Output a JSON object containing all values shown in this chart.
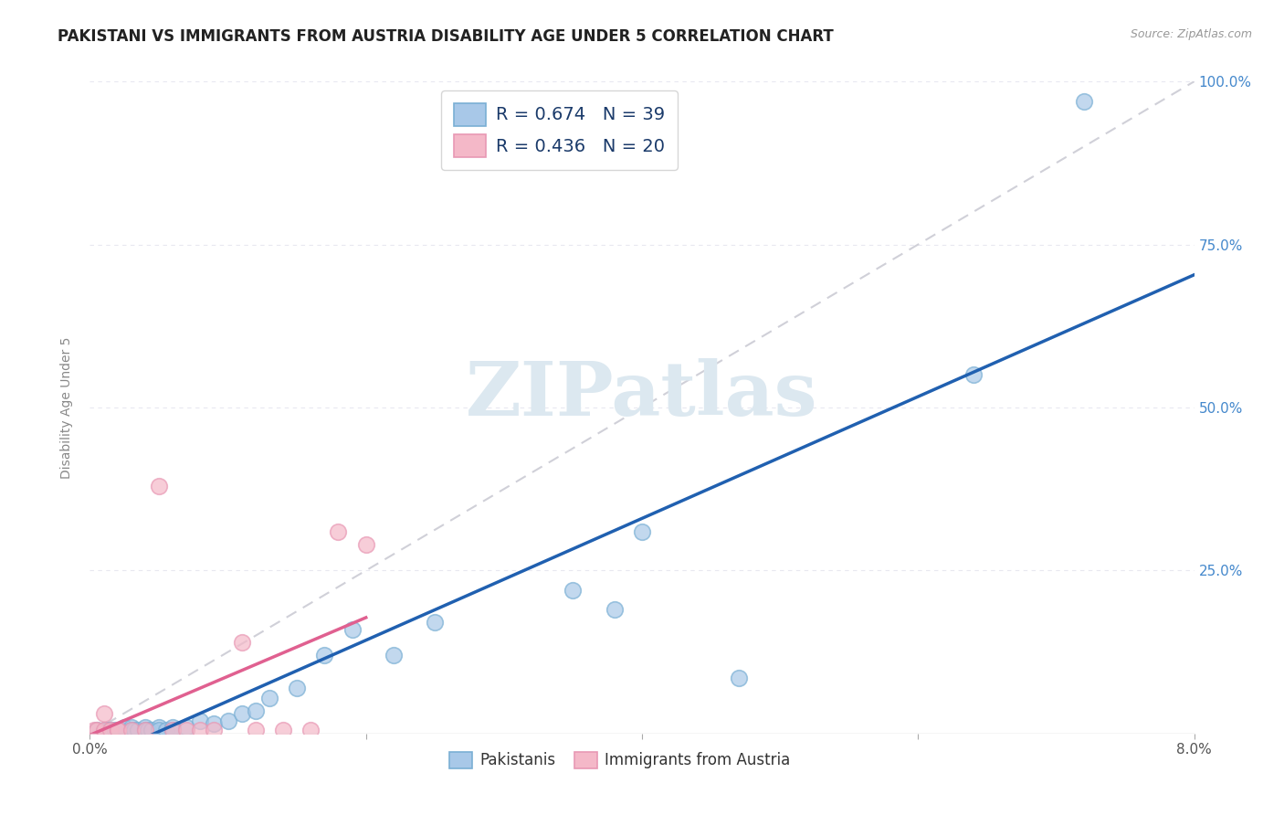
{
  "title": "PAKISTANI VS IMMIGRANTS FROM AUSTRIA DISABILITY AGE UNDER 5 CORRELATION CHART",
  "source": "Source: ZipAtlas.com",
  "ylabel": "Disability Age Under 5",
  "xlim": [
    0.0,
    0.08
  ],
  "ylim": [
    0.0,
    1.0
  ],
  "xtick_positions": [
    0.0,
    0.02,
    0.04,
    0.06,
    0.08
  ],
  "xtick_labels": [
    "0.0%",
    "",
    "",
    "",
    "8.0%"
  ],
  "ytick_positions": [
    0.25,
    0.5,
    0.75,
    1.0
  ],
  "ytick_labels_right": [
    "25.0%",
    "50.0%",
    "75.0%",
    "100.0%"
  ],
  "legend_entries": [
    {
      "r": "R = 0.674",
      "n": "N = 39",
      "color": "#a8c8e8"
    },
    {
      "r": "R = 0.436",
      "n": "N = 20",
      "color": "#f4b8c8"
    }
  ],
  "pakistanis_x": [
    0.0005,
    0.001,
    0.0013,
    0.0015,
    0.0018,
    0.002,
    0.0022,
    0.0025,
    0.003,
    0.003,
    0.0032,
    0.0035,
    0.004,
    0.004,
    0.0042,
    0.0045,
    0.005,
    0.005,
    0.0055,
    0.006,
    0.006,
    0.007,
    0.008,
    0.009,
    0.01,
    0.011,
    0.012,
    0.013,
    0.015,
    0.017,
    0.019,
    0.022,
    0.025,
    0.035,
    0.038,
    0.04,
    0.047,
    0.064,
    0.072
  ],
  "pakistanis_y": [
    0.005,
    0.005,
    0.005,
    0.005,
    0.005,
    0.005,
    0.005,
    0.01,
    0.01,
    0.005,
    0.005,
    0.005,
    0.01,
    0.005,
    0.005,
    0.005,
    0.01,
    0.005,
    0.005,
    0.01,
    0.005,
    0.01,
    0.02,
    0.015,
    0.02,
    0.03,
    0.035,
    0.055,
    0.07,
    0.12,
    0.16,
    0.12,
    0.17,
    0.22,
    0.19,
    0.31,
    0.085,
    0.55,
    0.97
  ],
  "austria_x": [
    0.0003,
    0.0005,
    0.001,
    0.001,
    0.0015,
    0.002,
    0.002,
    0.003,
    0.004,
    0.005,
    0.006,
    0.007,
    0.008,
    0.009,
    0.011,
    0.012,
    0.014,
    0.016,
    0.018,
    0.02
  ],
  "austria_y": [
    0.005,
    0.005,
    0.005,
    0.03,
    0.005,
    0.005,
    0.005,
    0.005,
    0.005,
    0.38,
    0.005,
    0.005,
    0.005,
    0.005,
    0.14,
    0.005,
    0.005,
    0.005,
    0.31,
    0.29
  ],
  "blue_scatter_color": "#a8c8e8",
  "pink_scatter_color": "#f4b8c8",
  "blue_edge_color": "#7aafd4",
  "pink_edge_color": "#e898b4",
  "blue_line_color": "#2060b0",
  "pink_line_color": "#e06090",
  "dashed_line_color": "#d0d0d8",
  "grid_color": "#e8e8f0",
  "background_color": "#ffffff",
  "title_fontsize": 12,
  "axis_label_fontsize": 10,
  "tick_fontsize": 11,
  "legend_fontsize": 14,
  "watermark_text": "ZIPatlas",
  "watermark_color": "#dce8f0",
  "watermark_fontsize": 60,
  "right_tick_color": "#4488cc",
  "bottom_legend_labels": [
    "Pakistanis",
    "Immigrants from Austria"
  ]
}
